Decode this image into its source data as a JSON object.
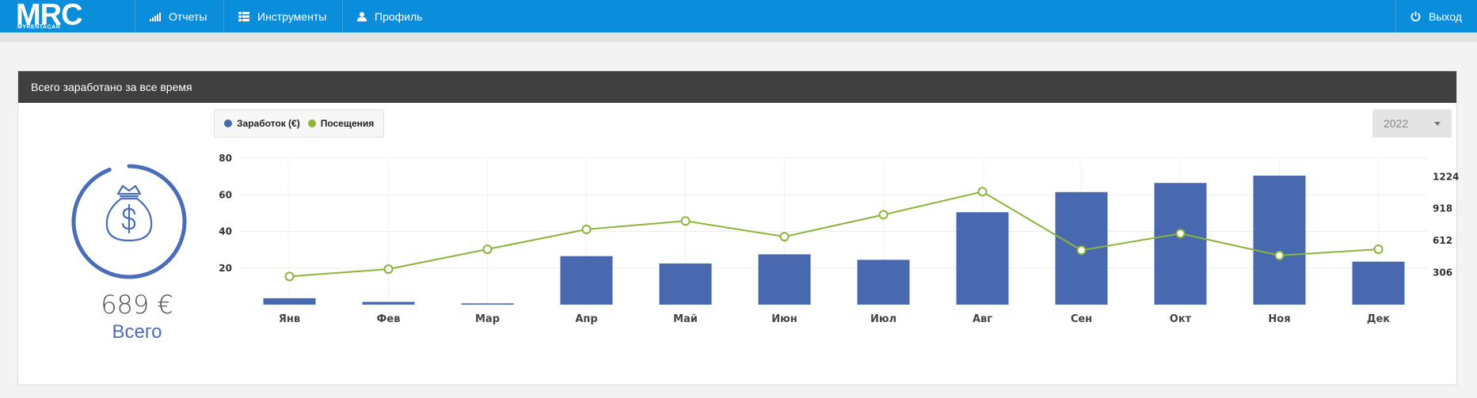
{
  "nav": {
    "logo_main": "MRC",
    "logo_sub": "MYRENTACAR",
    "items": [
      {
        "label": "Отчеты",
        "icon": "signal-bars-icon"
      },
      {
        "label": "Инструменты",
        "icon": "grid-table-icon"
      },
      {
        "label": "Профиль",
        "icon": "user-icon"
      }
    ],
    "logout_label": "Выход",
    "logout_icon": "power-icon"
  },
  "card": {
    "title": "Всего заработано за все время",
    "total_value": "689 €",
    "total_label": "Всего",
    "icon": "money-bag-icon"
  },
  "year_select": {
    "value": "2022"
  },
  "colors": {
    "bar": "#4868b0",
    "line": "#8ab43a",
    "header": "#0a8edb",
    "accent": "#4a6db7"
  },
  "chart_data": {
    "type": "bar",
    "categories": [
      "Янв",
      "Фев",
      "Мар",
      "Апр",
      "Май",
      "Июн",
      "Июл",
      "Авг",
      "Сен",
      "Окт",
      "Ноя",
      "Дек"
    ],
    "series": [
      {
        "name": "Заработок (€)",
        "type": "bar",
        "axis": "left",
        "values": [
          3.5,
          1.5,
          0.7,
          26.5,
          22.5,
          27.5,
          24.5,
          50.5,
          61.5,
          66.5,
          70.5,
          23.5
        ]
      },
      {
        "name": "Посещения",
        "type": "line",
        "axis": "right",
        "values": [
          270,
          340,
          530,
          720,
          800,
          650,
          860,
          1080,
          520,
          680,
          470,
          530
        ]
      }
    ],
    "left_axis": {
      "ticks": [
        20,
        40,
        60,
        80
      ],
      "ylim": [
        0,
        80
      ]
    },
    "right_axis": {
      "ticks": [
        306,
        612,
        918,
        1224
      ],
      "ylim": [
        0,
        1400
      ]
    },
    "grid": true,
    "legend": "top-left"
  }
}
